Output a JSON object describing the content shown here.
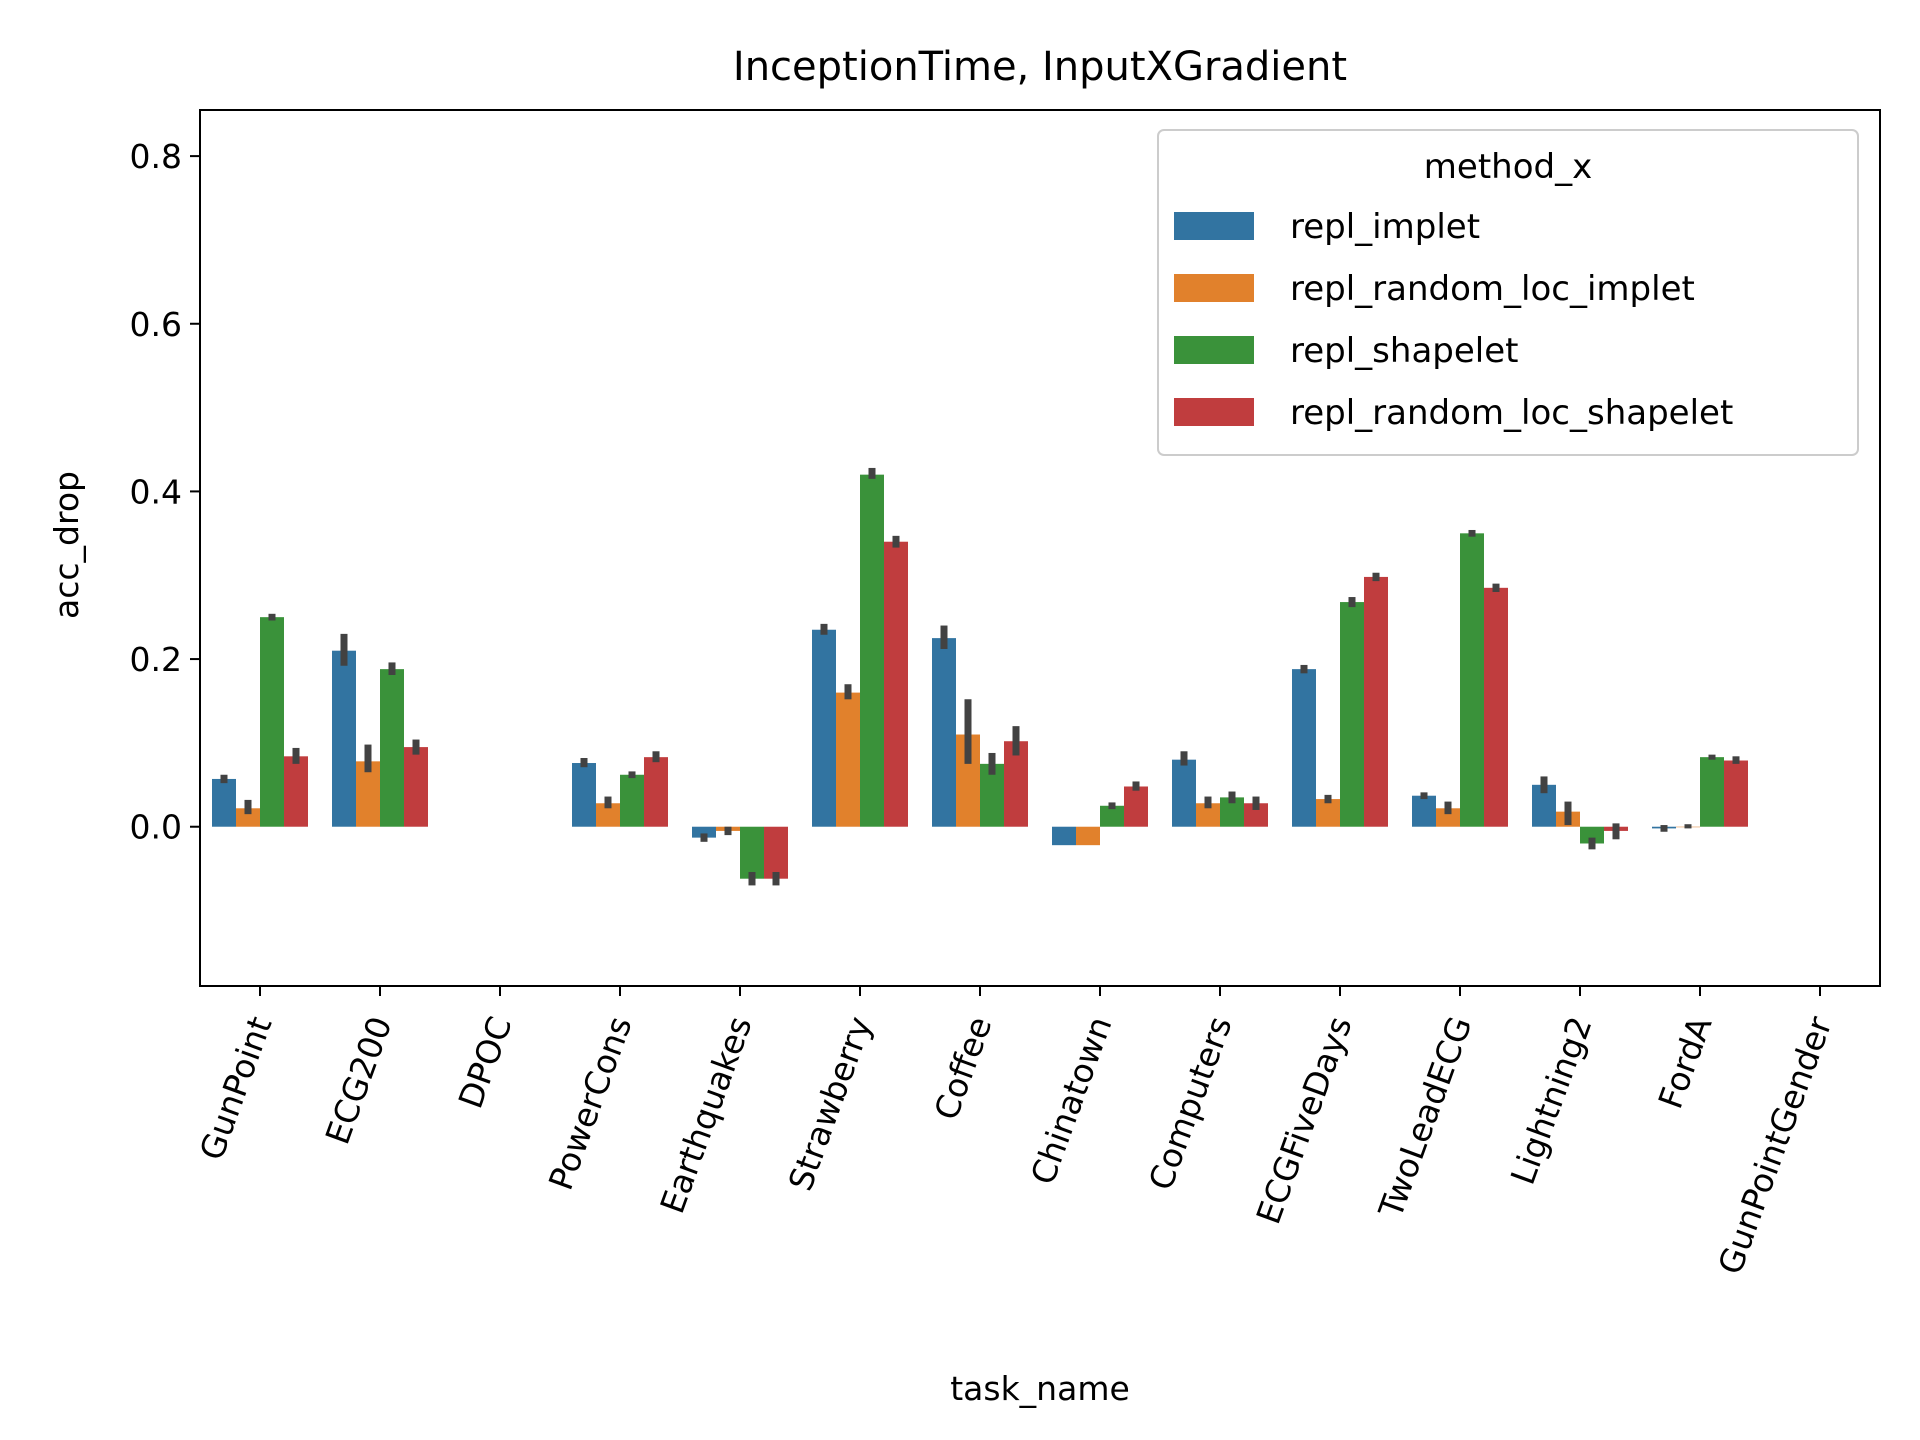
{
  "chart_data": {
    "type": "bar",
    "title": "InceptionTime, InputXGradient",
    "xlabel": "task_name",
    "ylabel": "acc_drop",
    "ylim": [
      -0.19,
      0.855
    ],
    "yticks": [
      0.0,
      0.2,
      0.4,
      0.6,
      0.8
    ],
    "ytick_labels": [
      "0.0",
      "0.2",
      "0.4",
      "0.6",
      "0.8"
    ],
    "categories": [
      "GunPoint",
      "ECG200",
      "DPOC",
      "PowerCons",
      "Earthquakes",
      "Strawberry",
      "Coffee",
      "Chinatown",
      "Computers",
      "ECGFiveDays",
      "TwoLeadECG",
      "Lightning2",
      "FordA",
      "GunPointGender"
    ],
    "legend": {
      "title": "method_x",
      "position": "upper right"
    },
    "series": [
      {
        "name": "repl_implet",
        "color": "#3274a1",
        "values": [
          0.057,
          0.21,
          null,
          0.076,
          -0.013,
          0.235,
          0.225,
          -0.022,
          0.08,
          0.188,
          0.037,
          0.05,
          -0.002,
          null
        ],
        "err": [
          [
            0.052,
            0.062
          ],
          [
            0.192,
            0.23
          ],
          null,
          [
            0.071,
            0.082
          ],
          [
            -0.018,
            -0.008
          ],
          [
            0.229,
            0.242
          ],
          [
            0.212,
            0.24
          ],
          null,
          [
            0.073,
            0.09
          ],
          [
            0.183,
            0.193
          ],
          [
            0.033,
            0.041
          ],
          [
            0.04,
            0.06
          ],
          [
            -0.006,
            0.002
          ],
          null
        ]
      },
      {
        "name": "repl_random_loc_implet",
        "color": "#e1812c",
        "values": [
          0.022,
          0.078,
          null,
          0.028,
          -0.005,
          0.16,
          0.11,
          -0.022,
          0.028,
          0.033,
          0.022,
          0.018,
          0.0,
          null
        ],
        "err": [
          [
            0.015,
            0.032
          ],
          [
            0.065,
            0.098
          ],
          null,
          [
            0.022,
            0.036
          ],
          [
            -0.01,
            0.0
          ],
          [
            0.152,
            0.17
          ],
          [
            0.075,
            0.152
          ],
          null,
          [
            0.022,
            0.036
          ],
          [
            0.028,
            0.038
          ],
          [
            0.015,
            0.03
          ],
          [
            0.002,
            0.03
          ],
          [
            -0.002,
            0.003
          ],
          null
        ]
      },
      {
        "name": "repl_shapelet",
        "color": "#3a923a",
        "values": [
          0.25,
          0.188,
          null,
          0.062,
          -0.062,
          0.42,
          0.075,
          0.025,
          0.035,
          0.268,
          0.35,
          -0.02,
          0.083,
          null
        ],
        "err": [
          [
            0.246,
            0.254
          ],
          [
            0.181,
            0.196
          ],
          null,
          [
            0.058,
            0.066
          ],
          [
            -0.07,
            -0.054
          ],
          [
            0.415,
            0.428
          ],
          [
            0.062,
            0.088
          ],
          [
            0.021,
            0.029
          ],
          [
            0.028,
            0.042
          ],
          [
            0.262,
            0.274
          ],
          [
            0.346,
            0.354
          ],
          [
            -0.027,
            -0.013
          ],
          [
            0.08,
            0.086
          ],
          null
        ]
      },
      {
        "name": "repl_random_loc_shapelet",
        "color": "#c03d3e",
        "values": [
          0.084,
          0.095,
          null,
          0.083,
          -0.062,
          0.34,
          0.102,
          0.048,
          0.028,
          0.298,
          0.285,
          -0.005,
          0.079,
          null
        ],
        "err": [
          [
            0.075,
            0.094
          ],
          [
            0.086,
            0.104
          ],
          null,
          [
            0.077,
            0.09
          ],
          [
            -0.07,
            -0.054
          ],
          [
            0.333,
            0.347
          ],
          [
            0.085,
            0.12
          ],
          [
            0.043,
            0.054
          ],
          [
            0.02,
            0.036
          ],
          [
            0.293,
            0.303
          ],
          [
            0.28,
            0.29
          ],
          [
            -0.015,
            0.004
          ],
          [
            0.075,
            0.084
          ],
          null
        ]
      }
    ]
  }
}
